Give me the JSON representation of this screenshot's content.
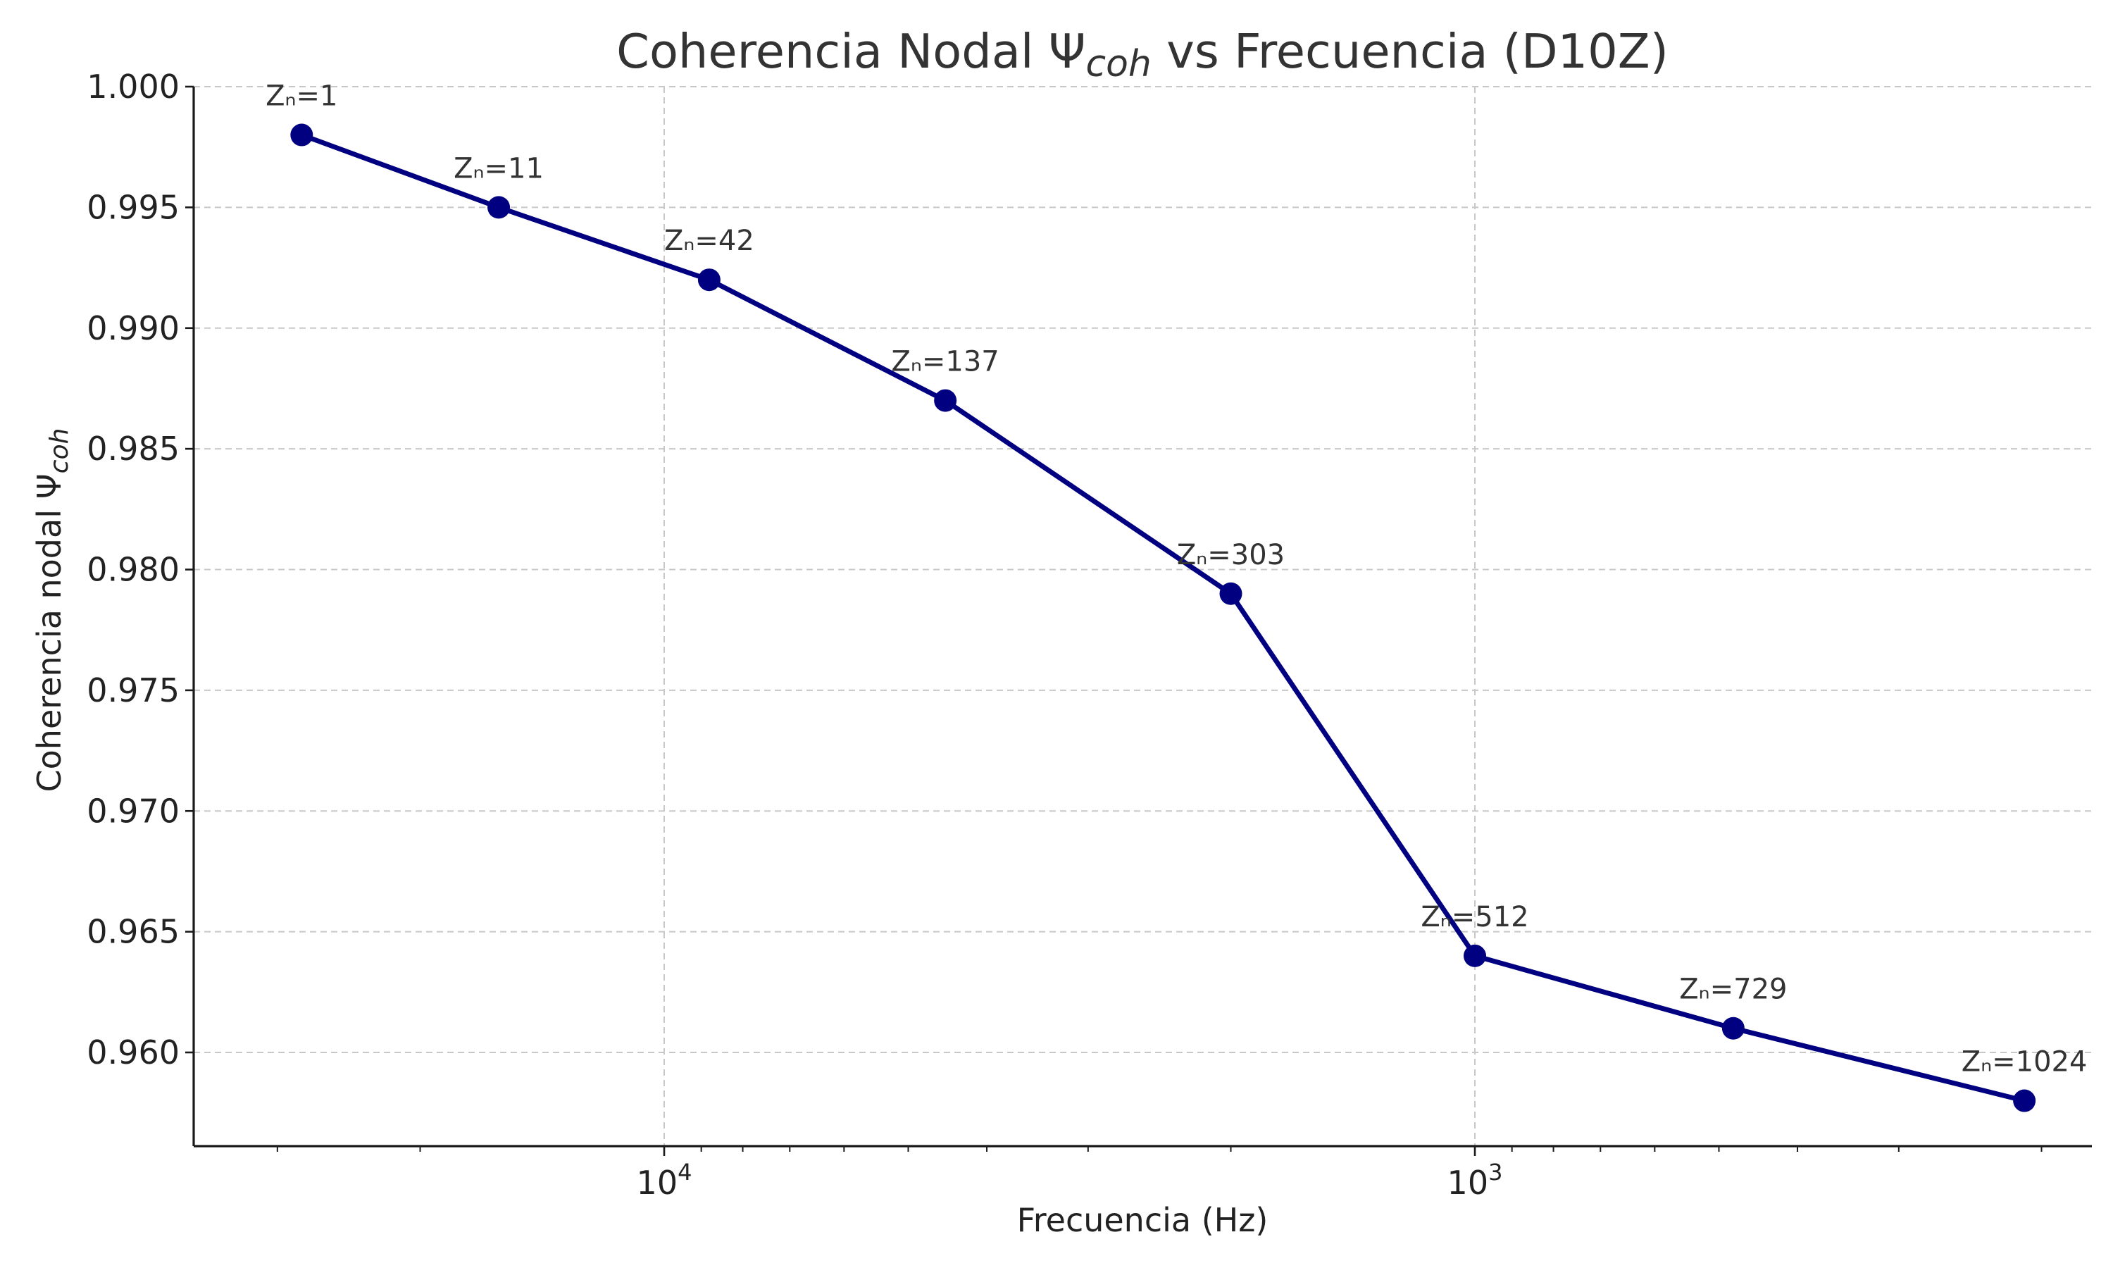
{
  "chart_data": {
    "type": "line",
    "title": "Coherencia Nodal Ψ",
    "title_subscript": "coh",
    "title_suffix": " vs Frecuencia (D10Z)",
    "xlabel": "Frecuencia (Hz)",
    "ylabel": "Coherencia nodal Ψ",
    "ylabel_subscript": "coh",
    "x_scale": "log",
    "x_inverted": true,
    "x_tick_labels": [
      {
        "base": "10",
        "exponent": "4",
        "value": 10000
      },
      {
        "base": "10",
        "exponent": "3",
        "value": 1000
      }
    ],
    "y_tick_labels": [
      "0.960",
      "0.965",
      "0.970",
      "0.975",
      "0.980",
      "0.985",
      "0.990",
      "0.995",
      "1.000"
    ],
    "ylim": [
      0.956,
      1.0
    ],
    "grid": true,
    "line_color": "#000080",
    "points": [
      {
        "x": 28000,
        "y": 0.998,
        "label": "Zₙ=1"
      },
      {
        "x": 16000,
        "y": 0.995,
        "label": "Zₙ=11"
      },
      {
        "x": 8800,
        "y": 0.992,
        "label": "Zₙ=42"
      },
      {
        "x": 4500,
        "y": 0.987,
        "label": "Zₙ=137"
      },
      {
        "x": 2000,
        "y": 0.979,
        "label": "Zₙ=303"
      },
      {
        "x": 1000,
        "y": 0.964,
        "label": "Zₙ=512"
      },
      {
        "x": 480,
        "y": 0.961,
        "label": "Zₙ=729"
      },
      {
        "x": 210,
        "y": 0.958,
        "label": "Zₙ=1024"
      }
    ]
  }
}
